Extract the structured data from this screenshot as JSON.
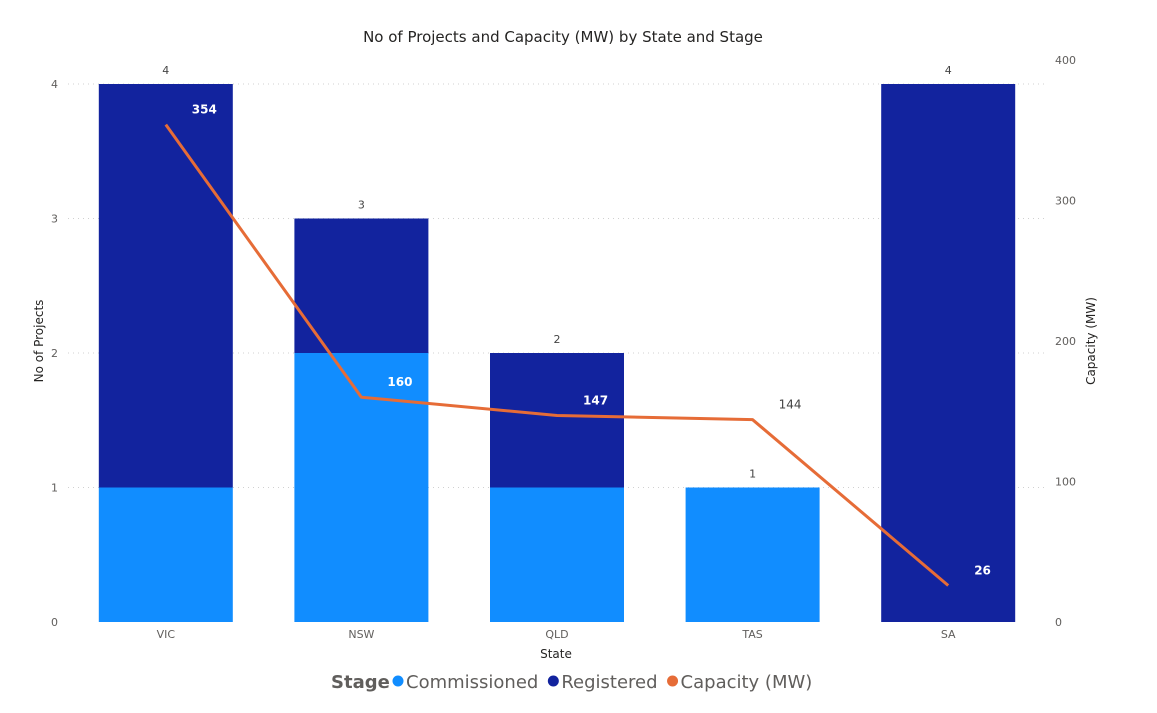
{
  "chart_data": {
    "type": "bar",
    "stacked": true,
    "title": "No of Projects and Capacity (MW) by State and Stage",
    "xlabel": "State",
    "ylabel": "No of Projects",
    "y2label": "Capacity (MW)",
    "categories": [
      "VIC",
      "NSW",
      "QLD",
      "TAS",
      "SA"
    ],
    "ylim": [
      0,
      4
    ],
    "y2lim": [
      0,
      400
    ],
    "yticks": [
      0,
      1,
      2,
      3,
      4
    ],
    "y2ticks": [
      0,
      100,
      200,
      300,
      400
    ],
    "grid": true,
    "series": [
      {
        "name": "Commissioned",
        "kind": "bar",
        "axis": "left",
        "color": "#118DFF",
        "values": [
          1,
          2,
          1,
          1,
          0
        ]
      },
      {
        "name": "Registered",
        "kind": "bar",
        "axis": "left",
        "color": "#12239E",
        "values": [
          3,
          1,
          1,
          0,
          4
        ]
      },
      {
        "name": "Capacity (MW)",
        "kind": "line",
        "axis": "right",
        "color": "#E66C37",
        "values": [
          354,
          160,
          147,
          144,
          26
        ]
      }
    ],
    "totals": [
      4,
      3,
      2,
      1,
      4
    ],
    "legend": {
      "title": "Stage",
      "position": "bottom-center",
      "items": [
        "Commissioned",
        "Registered",
        "Capacity (MW)"
      ]
    }
  }
}
